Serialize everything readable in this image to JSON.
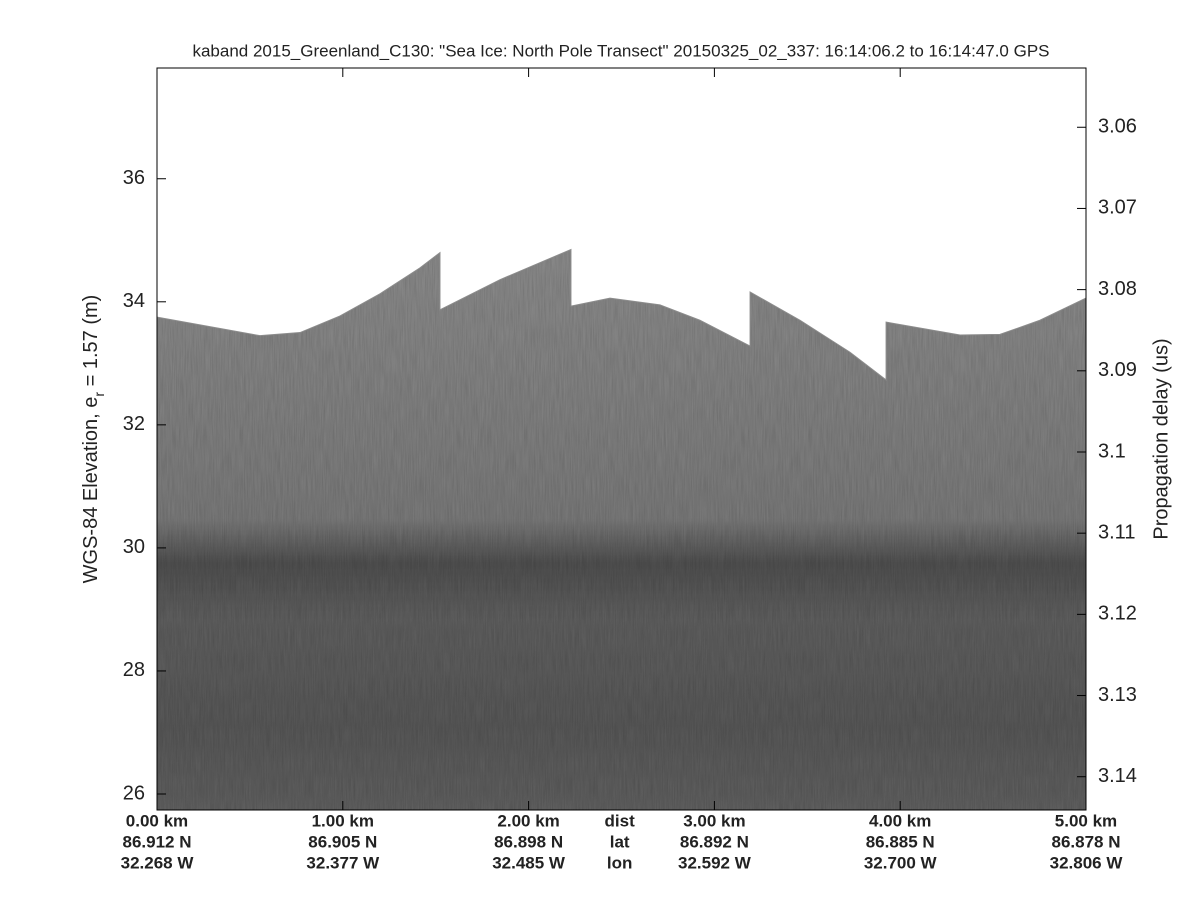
{
  "chart_data": {
    "type": "echogram",
    "title": "kaband 2015_Greenland_C130: \"Sea Ice: North Pole Transect\"  20150325_02_337: 16:14:06.2 to 16:14:47.0 GPS",
    "ylabel_parts": [
      "WGS-84 Elevation, e",
      "r",
      " = 1.57 (m)"
    ],
    "y2label": "Propagation delay (us)",
    "row_labels": [
      "dist",
      "lat",
      "lon"
    ],
    "row_label_x": 2.49,
    "xlim": [
      0,
      5
    ],
    "xticks": [
      {
        "value": 0,
        "label": "0.00 km"
      },
      {
        "value": 1,
        "label": "1.00 km"
      },
      {
        "value": 2,
        "label": "2.00 km"
      },
      {
        "value": 3,
        "label": "3.00 km"
      },
      {
        "value": 4,
        "label": "4.00 km"
      },
      {
        "value": 5,
        "label": "5.00 km"
      }
    ],
    "xtick_lat": [
      "86.912 N",
      "86.905 N",
      "86.898 N",
      "86.892 N",
      "86.885 N",
      "86.878 N"
    ],
    "xtick_lon": [
      "32.268 W",
      "32.377 W",
      "32.485 W",
      "32.592 W",
      "32.700 W",
      "32.806 W"
    ],
    "ylim": [
      25.74,
      37.8
    ],
    "yticks": [
      26,
      28,
      30,
      32,
      34,
      36
    ],
    "y2lim": [
      3.0527,
      3.1441
    ],
    "y2_reversed": true,
    "y2ticks": [
      3.06,
      3.07,
      3.08,
      3.09,
      3.1,
      3.11,
      3.12,
      3.13,
      3.14
    ],
    "x": [
      0,
      0.554,
      0.77,
      0.985,
      1.2,
      1.415,
      1.523,
      1.523,
      1.846,
      2.228,
      2.228,
      2.438,
      2.707,
      2.922,
      3.192,
      3.192,
      3.461,
      3.73,
      3.924,
      3.924,
      4.322,
      4.537,
      4.752,
      5.0
    ],
    "series": [
      {
        "color": "#8c8c8c",
        "values": [
          33.75,
          33.45,
          33.5,
          33.77,
          34.13,
          34.55,
          34.8,
          33.87,
          34.36,
          34.85,
          33.93,
          34.06,
          33.95,
          33.7,
          33.28,
          34.16,
          33.7,
          33.18,
          32.73,
          33.67,
          33.46,
          33.47,
          33.7,
          34.06
        ]
      }
    ]
  }
}
